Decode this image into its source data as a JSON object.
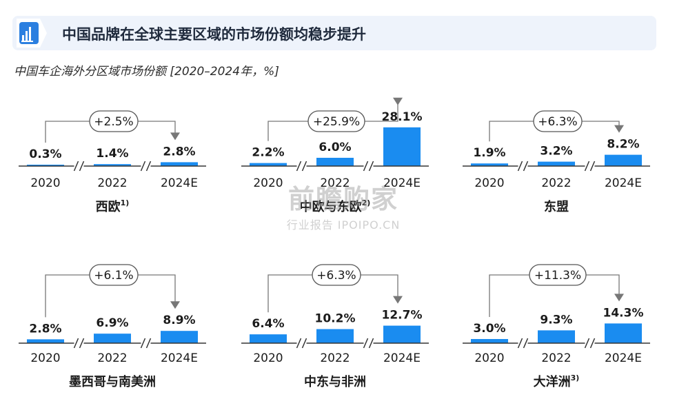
{
  "header": {
    "title": "中国品牌在全球主要区域的市场份额均稳步提升",
    "icon": "bar-chart-icon"
  },
  "subtitle": "中国车企海外分区域市场份额 [2020–2024年，%]",
  "colors": {
    "bar": "#1a8cf0",
    "arrow": "#777777",
    "text": "#1b1b1b"
  },
  "watermark": {
    "main": "前瞻购家",
    "sub": "行业报告 IPOIPO.CN"
  },
  "chart_data": [
    {
      "type": "bar",
      "title": "西欧",
      "footnote": "1)",
      "categories": [
        "2020",
        "2022",
        "2024E"
      ],
      "values": [
        0.3,
        1.4,
        2.8
      ],
      "labels": [
        "0.3%",
        "1.4%",
        "2.8%"
      ],
      "growth": "+2.5%"
    },
    {
      "type": "bar",
      "title": "中欧与东欧",
      "footnote": "2)",
      "categories": [
        "2020",
        "2022",
        "2024E"
      ],
      "values": [
        2.2,
        6.0,
        28.1
      ],
      "labels": [
        "2.2%",
        "6.0%",
        "28.1%"
      ],
      "growth": "+25.9%"
    },
    {
      "type": "bar",
      "title": "东盟",
      "footnote": "",
      "categories": [
        "2020",
        "2022",
        "2024E"
      ],
      "values": [
        1.9,
        3.2,
        8.2
      ],
      "labels": [
        "1.9%",
        "3.2%",
        "8.2%"
      ],
      "growth": "+6.3%"
    },
    {
      "type": "bar",
      "title": "墨西哥与南美洲",
      "footnote": "",
      "categories": [
        "2020",
        "2022",
        "2024E"
      ],
      "values": [
        2.8,
        6.9,
        8.9
      ],
      "labels": [
        "2.8%",
        "6.9%",
        "8.9%"
      ],
      "growth": "+6.1%"
    },
    {
      "type": "bar",
      "title": "中东与非洲",
      "footnote": "",
      "categories": [
        "2020",
        "2022",
        "2024E"
      ],
      "values": [
        6.4,
        10.2,
        12.7
      ],
      "labels": [
        "6.4%",
        "10.2%",
        "12.7%"
      ],
      "growth": "+6.3%"
    },
    {
      "type": "bar",
      "title": "大洋洲",
      "footnote": "3)",
      "categories": [
        "2020",
        "2022",
        "2024E"
      ],
      "values": [
        3.0,
        9.3,
        14.3
      ],
      "labels": [
        "3.0%",
        "9.3%",
        "14.3%"
      ],
      "growth": "+11.3%"
    }
  ]
}
